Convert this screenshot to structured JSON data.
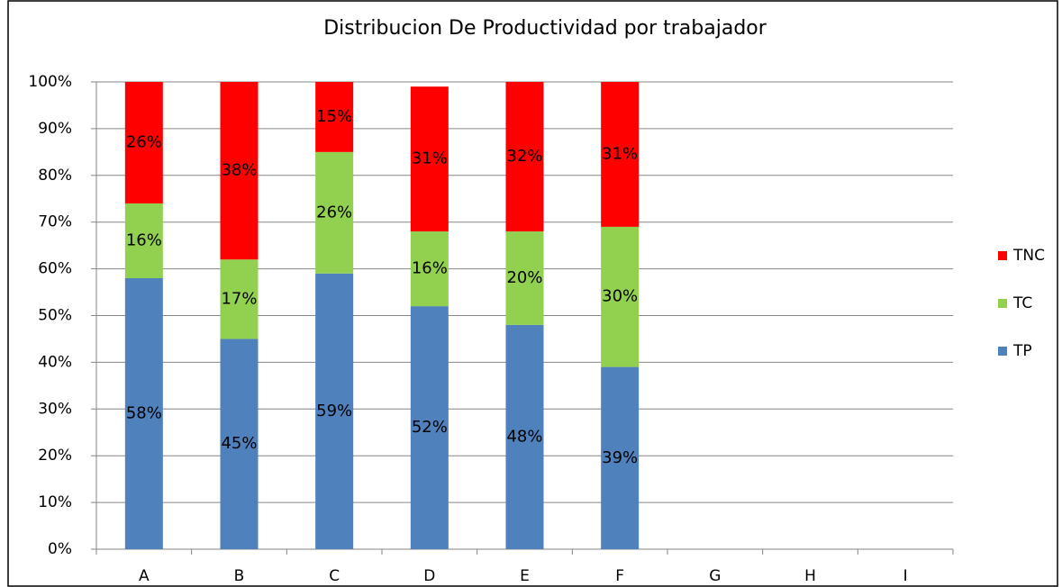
{
  "chart_data": {
    "type": "stacked_bar",
    "title": "Distribucion De Productividad por trabajador",
    "categories": [
      "A",
      "B",
      "C",
      "D",
      "E",
      "F",
      "G",
      "H",
      "I"
    ],
    "series": [
      {
        "name": "TP",
        "color": "#4f81bd",
        "values": [
          58,
          45,
          59,
          52,
          48,
          39,
          null,
          null,
          null
        ],
        "value_labels": [
          "58%",
          "45%",
          "59%",
          "52%",
          "48%",
          "39%",
          null,
          null,
          null
        ]
      },
      {
        "name": "TC",
        "color": "#92d050",
        "values": [
          16,
          17,
          26,
          16,
          20,
          30,
          null,
          null,
          null
        ],
        "value_labels": [
          "16%",
          "17%",
          "26%",
          "16%",
          "20%",
          "30%",
          null,
          null,
          null
        ]
      },
      {
        "name": "TNC",
        "color": "#ff0000",
        "values": [
          26,
          38,
          15,
          31,
          32,
          31,
          null,
          null,
          null
        ],
        "value_labels": [
          "26%",
          "38%",
          "15%",
          "31%",
          "32%",
          "31%",
          null,
          null,
          null
        ]
      }
    ],
    "ylim": [
      0,
      100
    ],
    "yticks": [
      {
        "value": 0,
        "label": "0%"
      },
      {
        "value": 10,
        "label": "10%"
      },
      {
        "value": 20,
        "label": "20%"
      },
      {
        "value": 30,
        "label": "30%"
      },
      {
        "value": 40,
        "label": "40%"
      },
      {
        "value": 50,
        "label": "50%"
      },
      {
        "value": 60,
        "label": "60%"
      },
      {
        "value": 70,
        "label": "70%"
      },
      {
        "value": 80,
        "label": "80%"
      },
      {
        "value": 90,
        "label": "90%"
      },
      {
        "value": 100,
        "label": "100%"
      }
    ],
    "grid": true,
    "legend": "right"
  }
}
